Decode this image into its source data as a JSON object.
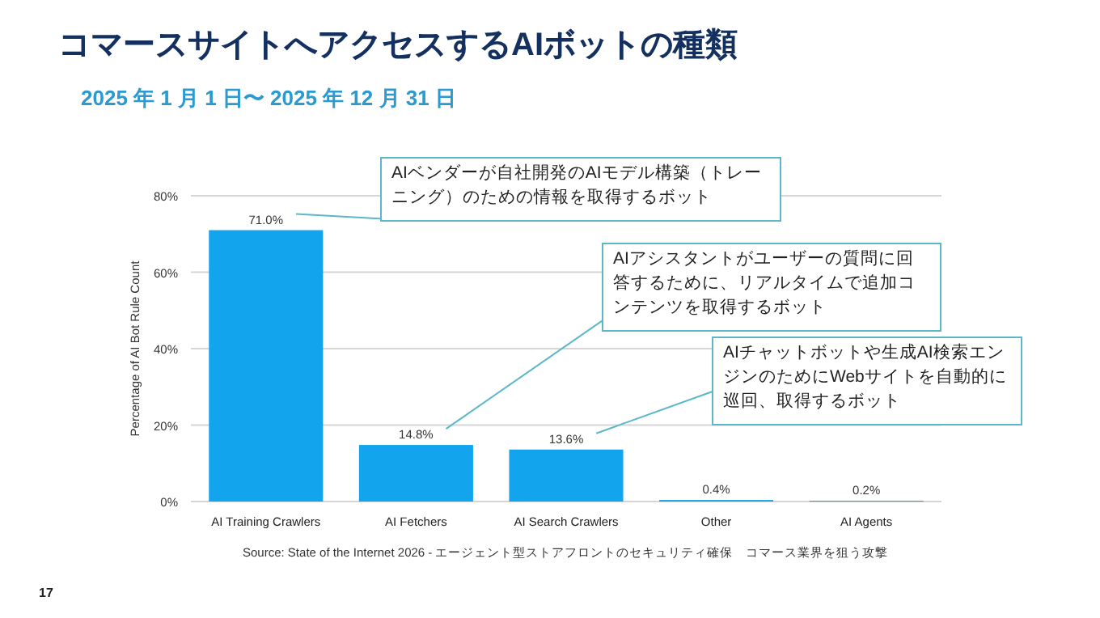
{
  "chart_data": {
    "type": "bar",
    "title": "コマースサイトへアクセスするAIボットの種類",
    "subtitle": "2025 年 1 月 1 日〜 2025 年 12 月 31 日",
    "ylabel": "Percentage of AI Bot Rule Count",
    "categories": [
      "AI Training Crawlers",
      "AI Fetchers",
      "AI Search Crawlers",
      "Other",
      "AI Agents"
    ],
    "values": [
      71.0,
      14.8,
      13.6,
      0.4,
      0.2
    ],
    "value_labels": [
      "71.0%",
      "14.8%",
      "13.6%",
      "0.4%",
      "0.2%"
    ],
    "color": "#12a4ec",
    "ylim": [
      0,
      80
    ],
    "yticks": [
      {
        "value": 0,
        "label": "0%"
      },
      {
        "value": 20,
        "label": "20%"
      },
      {
        "value": 40,
        "label": "40%"
      },
      {
        "value": 60,
        "label": "60%"
      },
      {
        "value": 80,
        "label": "80%"
      }
    ],
    "grid": "y",
    "annotations": [
      "AIベンダーが自社開発のAIモデル構築（トレーニング）のための情報を取得するボット",
      "AIアシスタントがユーザーの質問に回答するために、リアルタイムで追加コンテンツを取得するボット",
      "AIチャットボットや生成AI検索エンジンのためにWebサイトを自動的に巡回、取得するボット",
      "Source: State of the Internet 2026 - エージェント型ストアフロントのセキュリティ確保　コマース業界を狙う攻撃",
      "17"
    ]
  }
}
